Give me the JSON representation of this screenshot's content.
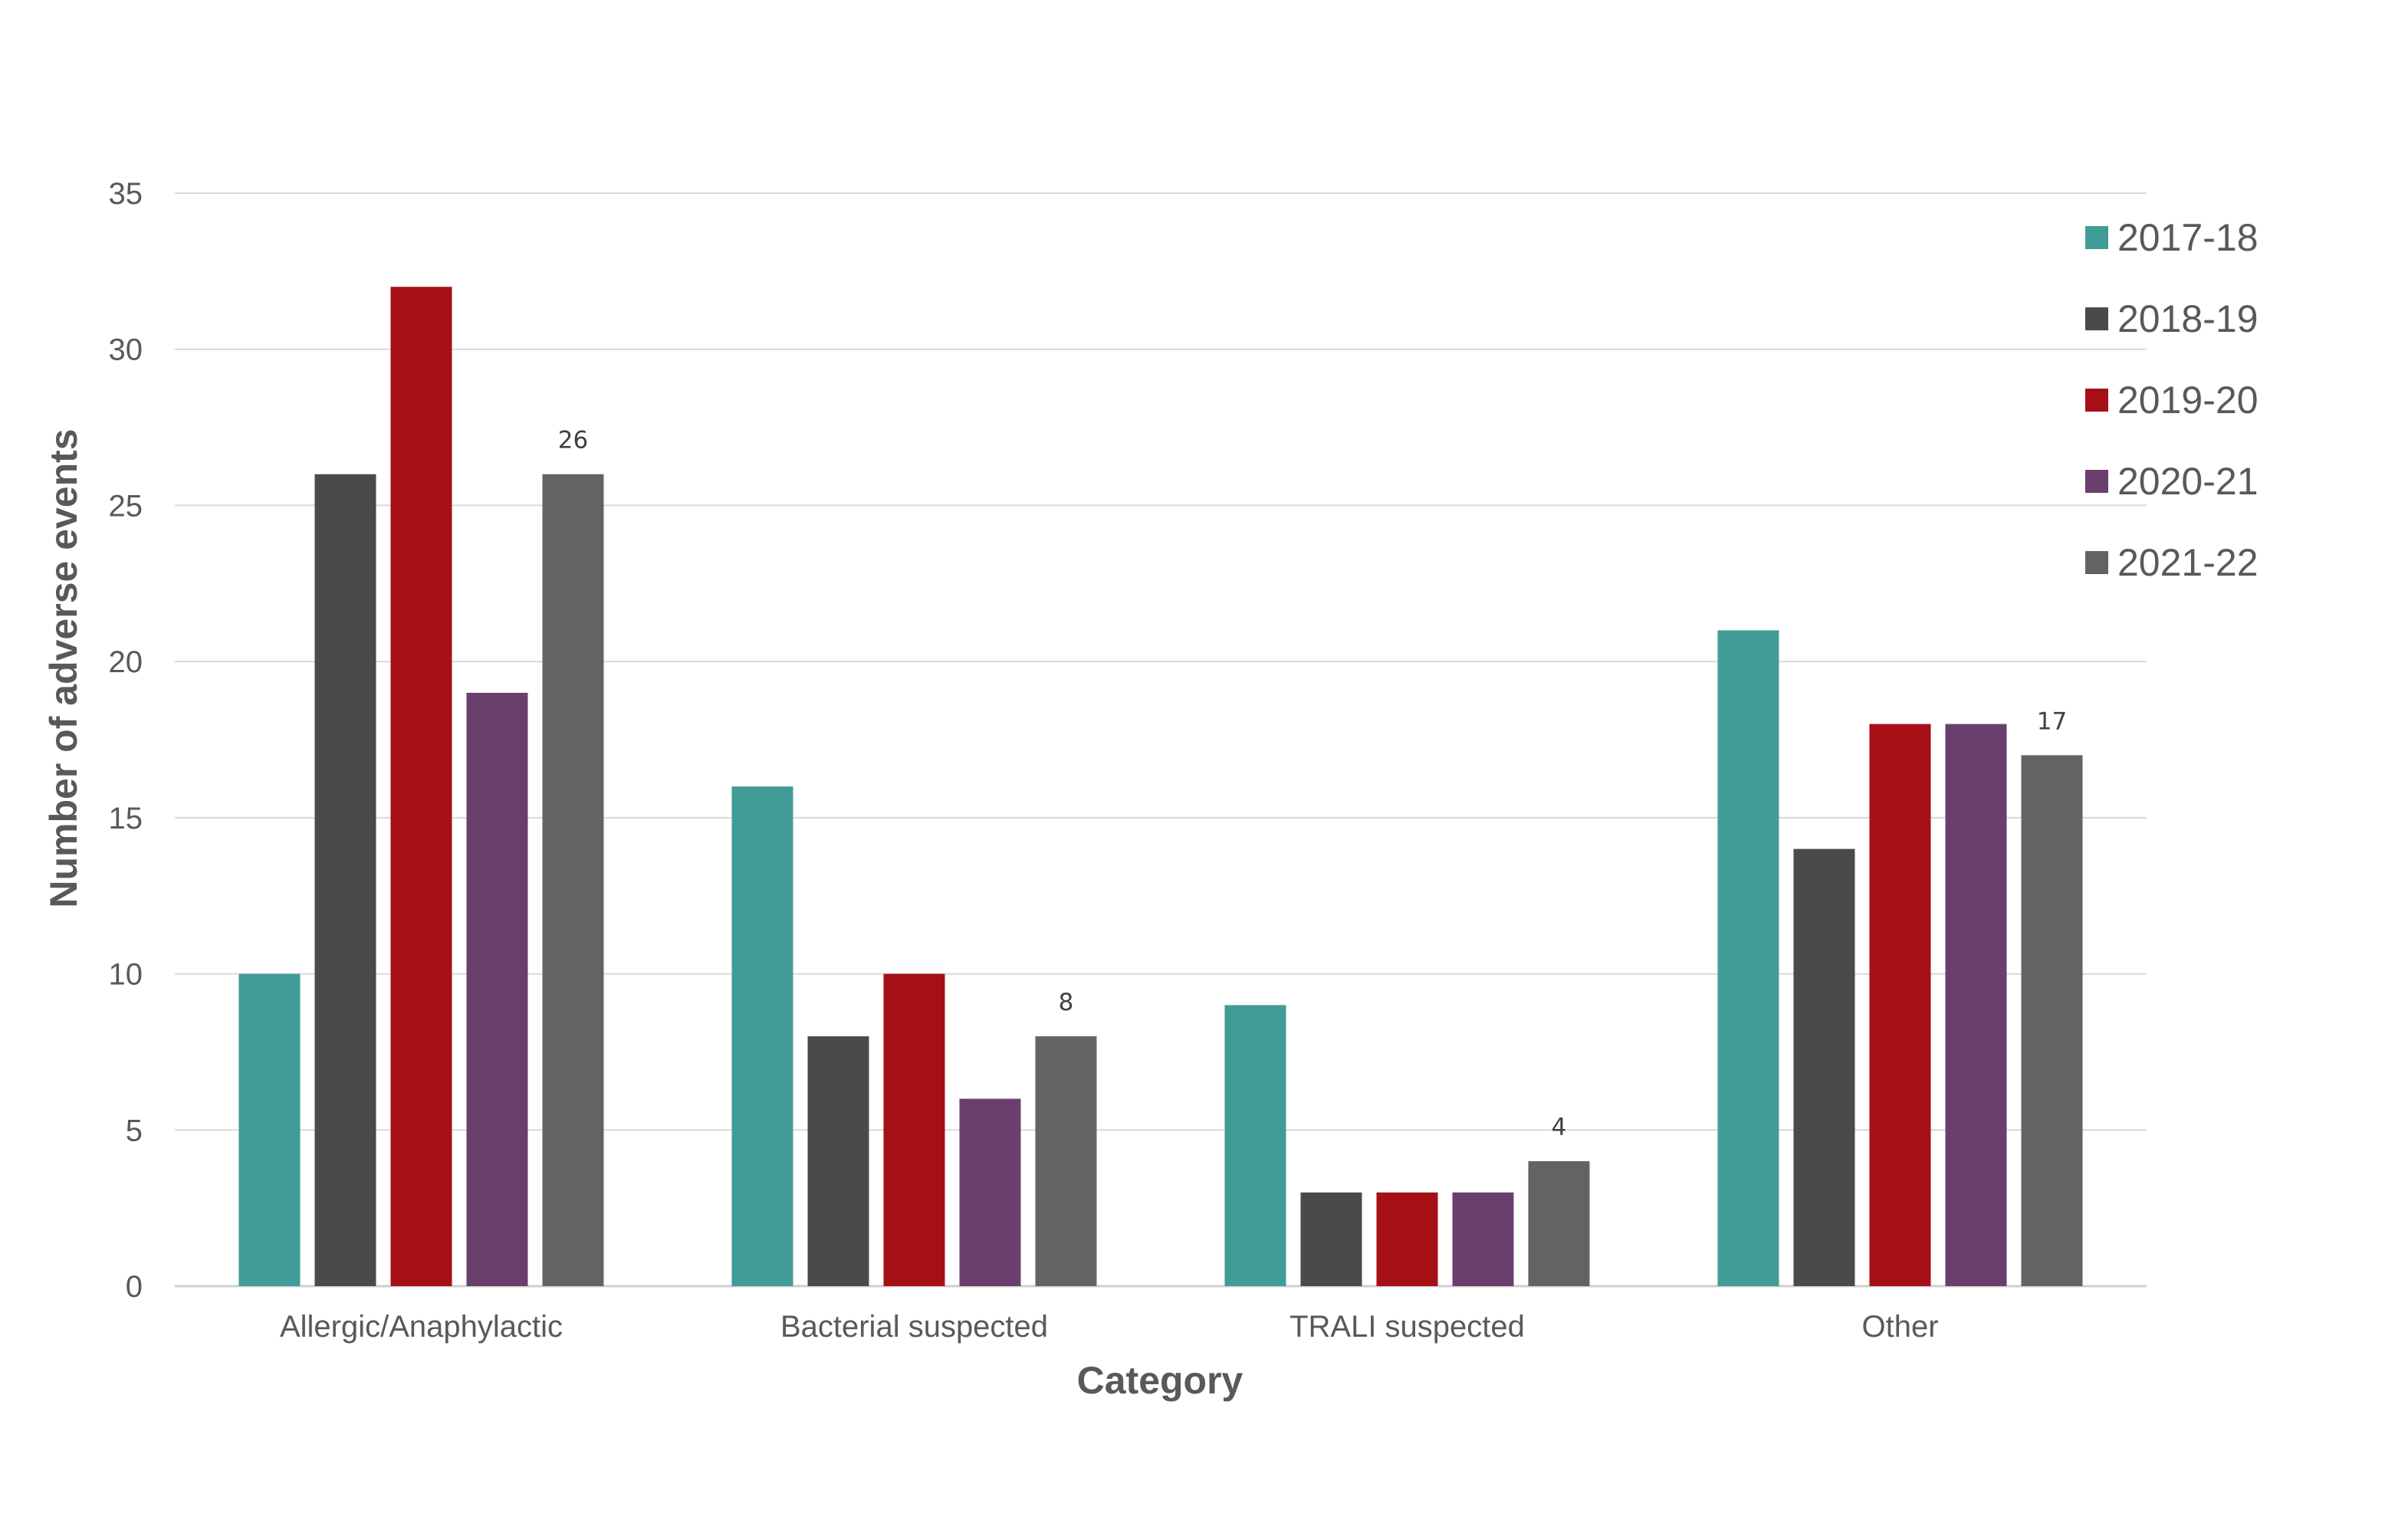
{
  "chart_data": {
    "type": "bar",
    "title": "",
    "xlabel": "Category",
    "ylabel": "Number of adverse events",
    "categories": [
      "Allergic/Anaphylactic",
      "Bacterial suspected",
      "TRALI suspected",
      "Other"
    ],
    "series": [
      {
        "name": "2017-18",
        "values": [
          10,
          16,
          9,
          21
        ],
        "color": "#419C98"
      },
      {
        "name": "2018-19",
        "values": [
          26,
          8,
          3,
          14
        ],
        "color": "#4A4A4A"
      },
      {
        "name": "2019-20",
        "values": [
          32,
          10,
          3,
          18
        ],
        "color": "#A60F16"
      },
      {
        "name": "2020-21",
        "values": [
          19,
          6,
          3,
          18
        ],
        "color": "#6B3F6D"
      },
      {
        "name": "2021-22",
        "values": [
          26,
          8,
          4,
          17
        ],
        "color": "#636363",
        "show_labels": true
      }
    ],
    "ylim": [
      0,
      35
    ],
    "yticks": [
      0,
      5,
      10,
      15,
      20,
      25,
      30,
      35
    ],
    "grid": true,
    "legend_position": "top-right"
  }
}
